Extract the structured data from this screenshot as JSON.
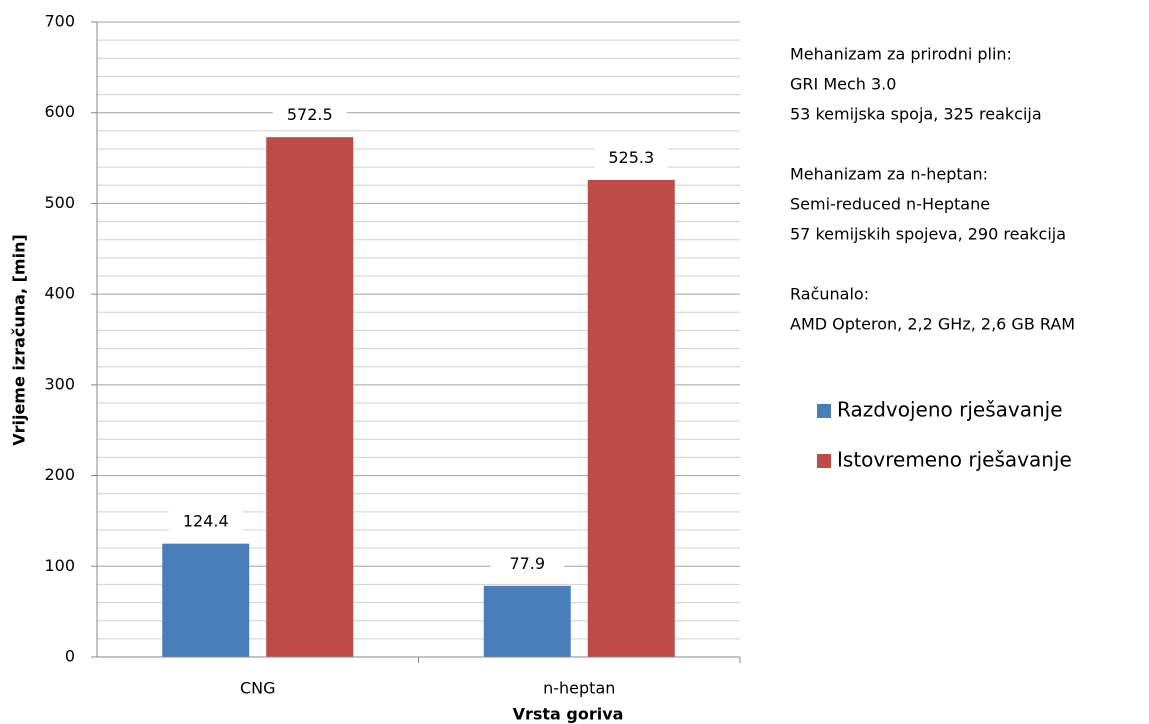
{
  "chart_data": {
    "type": "bar",
    "xlabel": "Vrsta goriva",
    "ylabel": "Vrijeme izračuna, [min]",
    "categories": [
      "CNG",
      "n-heptan"
    ],
    "series": [
      {
        "name": "Razdvojeno rješavanje",
        "color": "#4a7ebb",
        "values": [
          124.4,
          77.9
        ]
      },
      {
        "name": "Istovremeno rješavanje",
        "color": "#be4b48",
        "values": [
          572.5,
          525.3
        ]
      }
    ],
    "ylim": [
      0,
      700
    ],
    "yticks": [
      0,
      100,
      200,
      300,
      400,
      500,
      600,
      700
    ],
    "minor_yticks": [
      20,
      40,
      60,
      80,
      120,
      140,
      160,
      180,
      220,
      240,
      260,
      280,
      320,
      340,
      360,
      380,
      420,
      440,
      460,
      480,
      520,
      540,
      560,
      580,
      620,
      640,
      660,
      680
    ],
    "grid": true,
    "notes": [
      [
        "Mehanizam za prirodni plin:",
        "GRI Mech 3.0",
        "53 kemijska spoja, 325 reakcija"
      ],
      [
        "Mehanizam za n-heptan:",
        "Semi-reduced n-Heptane",
        "57 kemijskih spojeva, 290 reakcija"
      ],
      [
        "Računalo:",
        "AMD Opteron, 2,2 GHz, 2,6 GB RAM"
      ]
    ]
  }
}
